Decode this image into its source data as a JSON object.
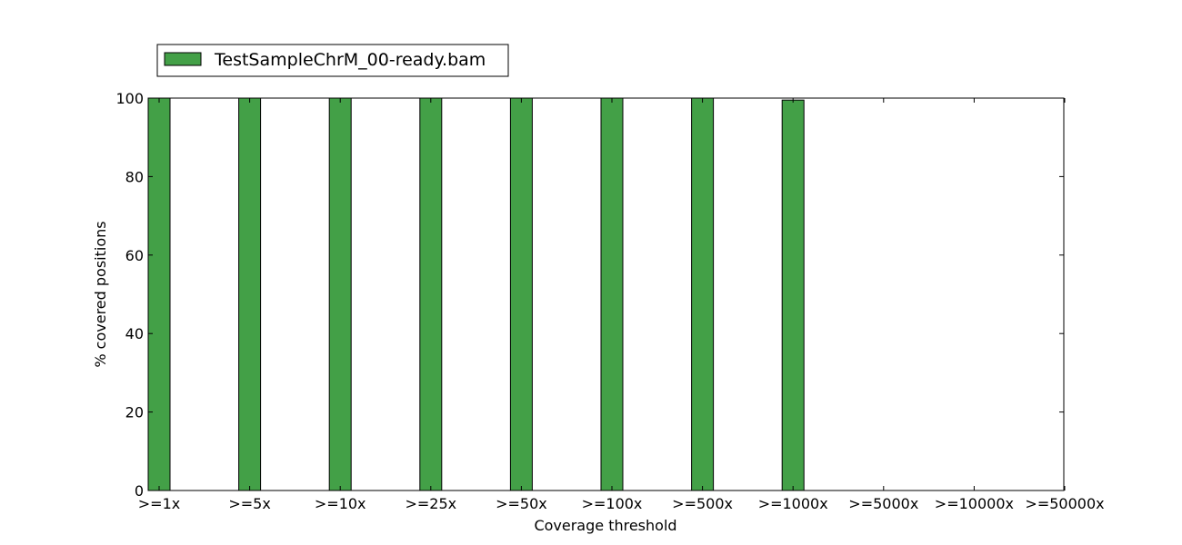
{
  "colors": {
    "bar": "#43a047",
    "edge": "#000000",
    "background": "#ffffff"
  },
  "chart_data": {
    "type": "bar",
    "title": "",
    "xlabel": "Coverage threshold",
    "ylabel": "% covered positions",
    "categories": [
      ">=1x",
      ">=5x",
      ">=10x",
      ">=25x",
      ">=50x",
      ">=100x",
      ">=500x",
      ">=1000x",
      ">=5000x",
      ">=10000x",
      ">=50000x"
    ],
    "series": [
      {
        "name": "TestSampleChrM_00-ready.bam",
        "values": [
          100,
          100,
          100,
          100,
          100,
          100,
          100,
          99.5,
          0,
          0,
          0
        ]
      }
    ],
    "ylim": [
      0,
      100
    ],
    "yticks": [
      0,
      20,
      40,
      60,
      80,
      100
    ],
    "grid": false,
    "legend": "top-left, above plot"
  }
}
